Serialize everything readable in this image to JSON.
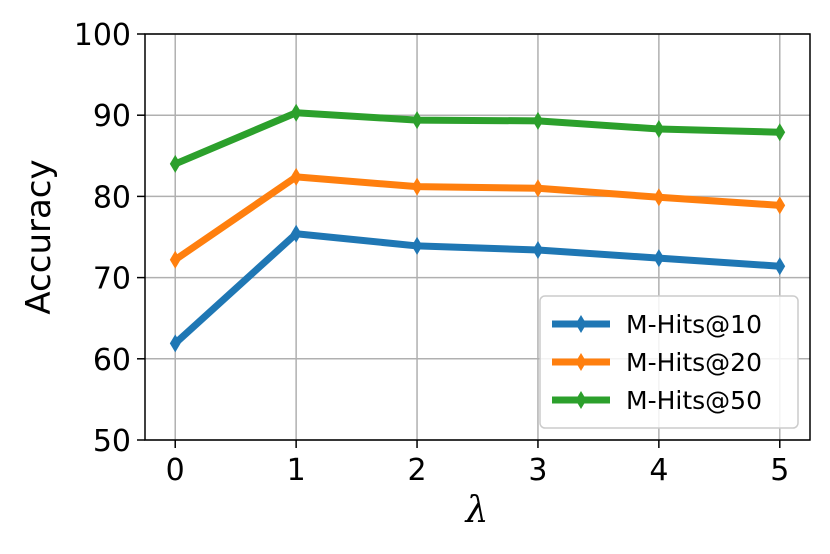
{
  "chart_data": {
    "type": "line",
    "x_label": "λ",
    "y_label": "Accuracy",
    "x": [
      0,
      1,
      2,
      3,
      4,
      5
    ],
    "series": [
      {
        "name": "M-Hits@10",
        "color": "#1f77b4",
        "values": [
          61.9,
          75.4,
          73.9,
          73.4,
          72.4,
          71.4
        ]
      },
      {
        "name": "M-Hits@20",
        "color": "#ff7f0e",
        "values": [
          72.2,
          82.4,
          81.2,
          81.0,
          79.9,
          78.9
        ]
      },
      {
        "name": "M-Hits@50",
        "color": "#2ca02c",
        "values": [
          84.0,
          90.3,
          89.4,
          89.3,
          88.3,
          87.9
        ]
      }
    ],
    "xlim": [
      -0.25,
      5.25
    ],
    "ylim": [
      50,
      100
    ],
    "xticks": [
      0,
      1,
      2,
      3,
      4,
      5
    ],
    "yticks": [
      50,
      60,
      70,
      80,
      90,
      100
    ],
    "grid": true,
    "legend": "lower right"
  }
}
